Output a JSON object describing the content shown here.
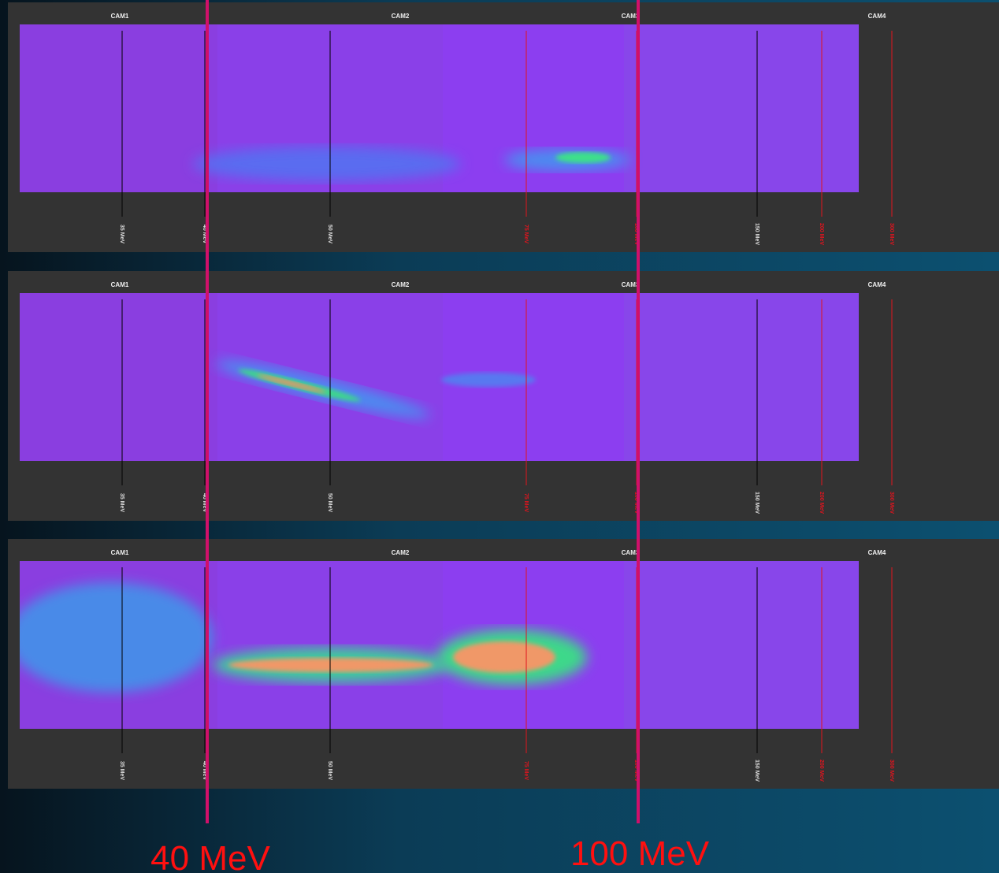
{
  "panels": [
    {
      "cameras": [
        "CAM1",
        "CAM2",
        "CAM3",
        "CAM4"
      ],
      "markers": [
        {
          "label": "35 MeV",
          "color": "#000000"
        },
        {
          "label": "40 MeV",
          "color": "#000000"
        },
        {
          "label": "50 MeV",
          "color": "#000000"
        },
        {
          "label": "75 MeV",
          "color": "#e0141e"
        },
        {
          "label": "100 MeV",
          "color": "#e0141e"
        },
        {
          "label": "150 MeV",
          "color": "#000000"
        },
        {
          "label": "200 MeV",
          "color": "#e0141e"
        },
        {
          "label": "300 MeV",
          "color": "#e0141e"
        }
      ]
    },
    {
      "cameras": [
        "CAM1",
        "CAM2",
        "CAM3",
        "CAM4"
      ],
      "markers": [
        {
          "label": "35 MeV",
          "color": "#000000"
        },
        {
          "label": "40 MeV",
          "color": "#000000"
        },
        {
          "label": "50 MeV",
          "color": "#000000"
        },
        {
          "label": "75 MeV",
          "color": "#e0141e"
        },
        {
          "label": "100 MeV",
          "color": "#e0141e"
        },
        {
          "label": "150 MeV",
          "color": "#000000"
        },
        {
          "label": "200 MeV",
          "color": "#e0141e"
        },
        {
          "label": "300 MeV",
          "color": "#e0141e"
        }
      ]
    },
    {
      "cameras": [
        "CAM1",
        "CAM2",
        "CAM3",
        "CAM4"
      ],
      "markers": [
        {
          "label": "35 MeV",
          "color": "#000000"
        },
        {
          "label": "40 MeV",
          "color": "#000000"
        },
        {
          "label": "50 MeV",
          "color": "#000000"
        },
        {
          "label": "75 MeV",
          "color": "#e0141e"
        },
        {
          "label": "100 MeV",
          "color": "#e0141e"
        },
        {
          "label": "150 MeV",
          "color": "#000000"
        },
        {
          "label": "200 MeV",
          "color": "#e0141e"
        },
        {
          "label": "300 MeV",
          "color": "#e0141e"
        }
      ]
    }
  ],
  "annotations": [
    {
      "label": "40 MeV",
      "color": "#ff1010"
    },
    {
      "label": "100 MeV",
      "color": "#ff1010"
    }
  ],
  "highlight_color": "#d0106a"
}
